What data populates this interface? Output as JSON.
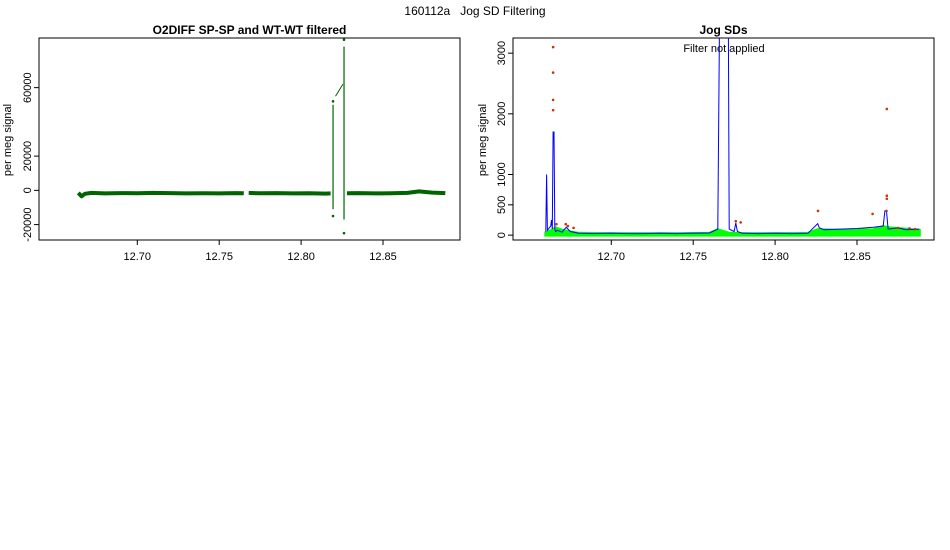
{
  "page": {
    "title": "160112a   Jog SD Filtering"
  },
  "chart_data": [
    {
      "type": "line",
      "title": "O2DIFF SP-SP and WT-WT filtered",
      "xlabel": "",
      "ylabel": "per meg signal",
      "xlim": [
        12.64,
        12.897
      ],
      "ylim": [
        -29000,
        89000
      ],
      "xticks": [
        12.7,
        12.75,
        12.8,
        12.85
      ],
      "xtick_labels": [
        "12.70",
        "12.75",
        "12.80",
        "12.85"
      ],
      "yticks": [
        -20000,
        0,
        20000,
        60000
      ],
      "ytick_labels": [
        "-20000",
        "0",
        "20000",
        "60000"
      ],
      "grid": false,
      "colors": {
        "series": "#006400"
      },
      "series": [
        {
          "segments": [
            {
              "x": [
                12.664,
                12.666,
                12.668,
                12.672,
                12.68,
                12.69,
                12.7,
                12.71,
                12.72,
                12.73,
                12.74,
                12.75,
                12.76,
                12.765
              ],
              "y": [
                -1500,
                -3500,
                -2000,
                -1500,
                -1800,
                -1600,
                -1700,
                -1500,
                -1600,
                -1800,
                -1700,
                -1800,
                -1600,
                -1700
              ]
            },
            {
              "x": [
                12.768,
                12.775,
                12.785,
                12.795,
                12.805,
                12.815,
                12.818
              ],
              "y": [
                -1500,
                -1700,
                -1600,
                -1800,
                -1700,
                -1900,
                -1800
              ]
            },
            {
              "x": [
                12.828,
                12.835,
                12.845,
                12.855,
                12.865,
                12.872,
                12.88,
                12.888
              ],
              "y": [
                -1700,
                -1600,
                -1800,
                -1700,
                -1500,
                -600,
                -1300,
                -1600
              ]
            }
          ],
          "spikes": [
            {
              "x": 12.8195,
              "y1": -11000,
              "y2": 50000
            },
            {
              "x": 12.8262,
              "y1": -17000,
              "y2": 84000
            }
          ],
          "points": [
            {
              "x": 12.8195,
              "y": 52000
            },
            {
              "x": 12.8195,
              "y": -15000
            },
            {
              "x": 12.8262,
              "y": 88000
            },
            {
              "x": 12.8262,
              "y": -25000
            }
          ],
          "connect": {
            "x": [
              12.821,
              12.8255
            ],
            "y": [
              55000,
              62000
            ]
          }
        }
      ]
    },
    {
      "type": "line",
      "title": "Jog SDs",
      "annotation": "Filter not applied",
      "xlabel": "",
      "ylabel": "per meg signal",
      "xlim": [
        12.64,
        12.897
      ],
      "ylim": [
        -80,
        3250
      ],
      "xticks": [
        12.7,
        12.75,
        12.8,
        12.85
      ],
      "xtick_labels": [
        "12.70",
        "12.75",
        "12.80",
        "12.85"
      ],
      "yticks": [
        0,
        500,
        1000,
        2000,
        3000
      ],
      "ytick_labels": [
        "0",
        "500",
        "1000",
        "2000",
        "3000"
      ],
      "grid": false,
      "colors": {
        "sd_line": "#0000ff",
        "band": "#00ff00",
        "outliers": "#cc3300"
      },
      "band": {
        "x": [
          12.66,
          12.663,
          12.666,
          12.67,
          12.68,
          12.7,
          12.72,
          12.74,
          12.76,
          12.765,
          12.772,
          12.78,
          12.8,
          12.82,
          12.826,
          12.84,
          12.86,
          12.866,
          12.87,
          12.888
        ],
        "y": [
          40,
          70,
          120,
          80,
          30,
          25,
          25,
          25,
          30,
          90,
          30,
          25,
          25,
          30,
          90,
          80,
          90,
          140,
          120,
          80
        ]
      },
      "sd_line": {
        "x": [
          12.66,
          12.6605,
          12.661,
          12.663,
          12.6635,
          12.664,
          12.6645,
          12.665,
          12.6655,
          12.666,
          12.667,
          12.67,
          12.6725,
          12.675,
          12.68,
          12.69,
          12.7,
          12.71,
          12.72,
          12.73,
          12.74,
          12.75,
          12.76,
          12.765,
          12.766,
          12.7665,
          12.771,
          12.7715,
          12.772,
          12.775,
          12.776,
          12.777,
          12.78,
          12.79,
          12.8,
          12.81,
          12.82,
          12.826,
          12.827,
          12.83,
          12.84,
          12.85,
          12.86,
          12.866,
          12.867,
          12.868,
          12.869,
          12.875,
          12.88,
          12.888
        ],
        "y": [
          60,
          1000,
          80,
          150,
          250,
          100,
          1700,
          1700,
          100,
          60,
          80,
          50,
          130,
          60,
          30,
          25,
          30,
          25,
          25,
          30,
          25,
          30,
          35,
          100,
          3300,
          3300,
          3300,
          3300,
          100,
          60,
          200,
          60,
          30,
          25,
          30,
          25,
          30,
          190,
          120,
          90,
          100,
          110,
          130,
          150,
          400,
          400,
          100,
          120,
          90,
          100
        ]
      },
      "outliers": {
        "x": [
          12.6645,
          12.6645,
          12.6645,
          12.6645,
          12.6665,
          12.6722,
          12.6735,
          12.677,
          12.776,
          12.779,
          12.8262,
          12.8595,
          12.8682,
          12.8682,
          12.8682,
          12.868,
          12.875,
          12.882,
          12.8855
        ],
        "y": [
          3100,
          2680,
          2230,
          2060,
          180,
          180,
          150,
          120,
          230,
          210,
          400,
          350,
          2080,
          650,
          600,
          400,
          120,
          110,
          100
        ]
      }
    }
  ]
}
